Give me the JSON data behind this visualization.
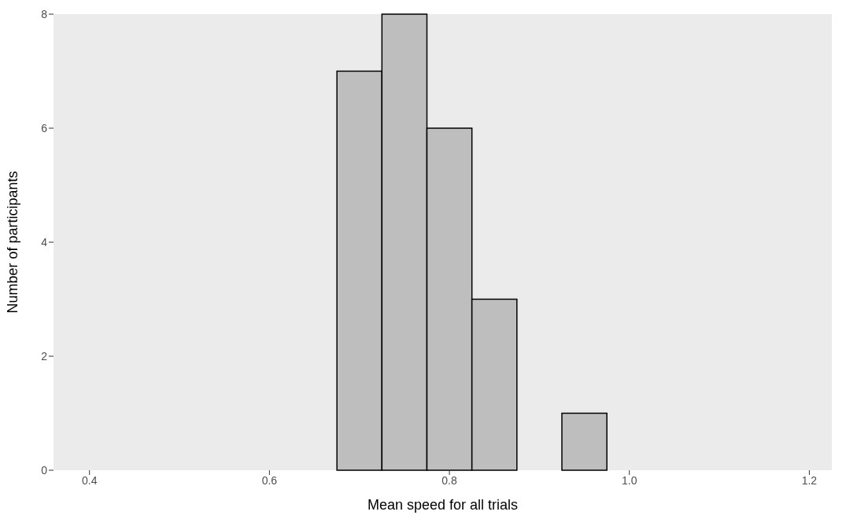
{
  "chart_data": {
    "type": "histogram",
    "xlabel": "Mean speed for all trials",
    "ylabel": "Number of participants",
    "bins": [
      0.425,
      0.475,
      0.525,
      0.575,
      0.625,
      0.675,
      0.725,
      0.775,
      0.825,
      0.875,
      0.925,
      0.975,
      1.025,
      1.075,
      1.125,
      1.175
    ],
    "values": [
      0,
      0,
      0,
      0,
      0,
      7,
      8,
      6,
      3,
      0,
      1,
      0,
      0,
      0,
      0
    ],
    "color": "#bebebe",
    "xlim": [
      0.36,
      1.225
    ],
    "xticks": [
      {
        "value": 0.4,
        "label": "0.4"
      },
      {
        "value": 0.6,
        "label": "0.6"
      },
      {
        "value": 0.8,
        "label": "0.8"
      },
      {
        "value": 1.0,
        "label": "1.0"
      },
      {
        "value": 1.2,
        "label": "1.2"
      }
    ],
    "ylim": [
      0,
      8
    ],
    "yticks": [
      0,
      2,
      4,
      6,
      8
    ],
    "grid": false
  }
}
